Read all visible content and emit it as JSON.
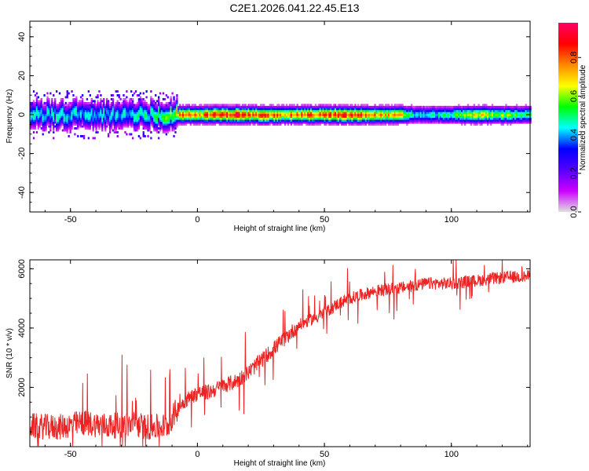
{
  "title": "C2E1.2026.041.22.45.E13",
  "chart_data": [
    {
      "type": "heatmap",
      "xlabel": "Height of straight line (km)",
      "ylabel": "Frequency (Hz)",
      "xlim": [
        -66,
        131
      ],
      "ylim": [
        -50,
        48
      ],
      "xticks": [
        -50,
        0,
        50,
        100
      ],
      "yticks": [
        -40,
        -20,
        0,
        20,
        40
      ],
      "ridge": {
        "x": [
          -66,
          -55,
          -45,
          -35,
          -25,
          -15,
          -10,
          -5,
          0,
          5,
          10,
          15,
          20,
          40,
          60,
          80,
          85,
          90,
          100,
          110,
          120,
          131
        ],
        "peak_amplitude": [
          0.45,
          0.45,
          0.45,
          0.42,
          0.45,
          0.5,
          0.6,
          0.9,
          0.75,
          0.85,
          0.85,
          0.95,
          0.8,
          0.8,
          0.85,
          0.7,
          0.45,
          0.45,
          0.5,
          0.7,
          0.6,
          0.5
        ]
      },
      "colorbar": {
        "label": "Normalized spectral amplitude",
        "ticks": [
          "0.0",
          "0.2",
          "0.4",
          "0.6",
          "0.8"
        ],
        "tick_values": [
          0.0,
          0.2,
          0.4,
          0.6,
          0.8
        ],
        "range": [
          0,
          0.98
        ],
        "colors": [
          "#e0e0e0",
          "#cc00ff",
          "#5500ff",
          "#0000ff",
          "#00ffff",
          "#00ff00",
          "#ffff00",
          "#ff8800",
          "#ff0000",
          "#ff0066"
        ]
      }
    },
    {
      "type": "line",
      "xlabel": "Height of straight line (km)",
      "ylabel": "SNR (10 * v/v)",
      "xlim": [
        -66,
        131
      ],
      "ylim": [
        0,
        6300
      ],
      "xticks": [
        -50,
        0,
        50,
        100
      ],
      "yticks": [
        2000,
        4000,
        6000
      ],
      "color": "#ee2222",
      "trend": {
        "x": [
          -66,
          -55,
          -45,
          -35,
          -25,
          -18,
          -12,
          -8,
          -5,
          0,
          5,
          10,
          15,
          20,
          30,
          40,
          50,
          55,
          60,
          70,
          80,
          90,
          100,
          110,
          120,
          131
        ],
        "y": [
          700,
          650,
          800,
          700,
          750,
          650,
          700,
          1250,
          1550,
          1800,
          1850,
          2050,
          2200,
          2500,
          3300,
          4100,
          4500,
          4800,
          5000,
          5250,
          5350,
          5500,
          5500,
          5600,
          5700,
          5750
        ]
      }
    }
  ]
}
